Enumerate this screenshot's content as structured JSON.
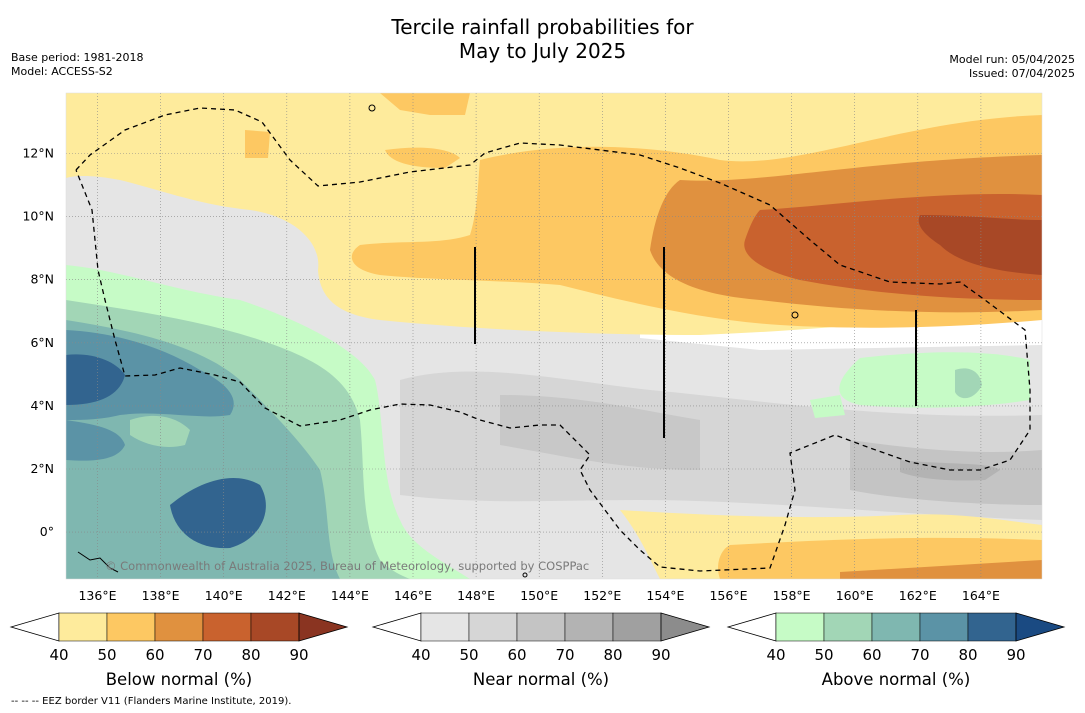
{
  "title_line1": "Tercile rainfall probabilities for",
  "title_line2": "May to July 2025",
  "meta_left": {
    "base_period": "Base period: 1981-2018",
    "model": "Model: ACCESS-S2"
  },
  "meta_right": {
    "model_run": "Model run: 05/04/2025",
    "issued": "Issued: 07/04/2025"
  },
  "copyright": "© Commonwealth of Australia 2025, Bureau of Meteorology, supported by COSPPac",
  "footnote": "--  --  -- EEZ border V11 (Flanders Marine Institute, 2019).",
  "axes": {
    "x_ticks": [
      "136°E",
      "138°E",
      "140°E",
      "142°E",
      "144°E",
      "146°E",
      "148°E",
      "150°E",
      "152°E",
      "154°E",
      "156°E",
      "158°E",
      "160°E",
      "162°E",
      "164°E"
    ],
    "y_ticks": [
      "12°N",
      "10°N",
      "8°N",
      "6°N",
      "4°N",
      "2°N",
      "0°"
    ]
  },
  "legends": [
    {
      "label": "Below normal (%)",
      "ticks": [
        "40",
        "50",
        "60",
        "70",
        "80",
        "90"
      ],
      "colors": [
        "#ffffff",
        "#feeb9c",
        "#fdc862",
        "#e0913f",
        "#c9622e",
        "#a84826",
        "#8a3421"
      ]
    },
    {
      "label": "Near normal (%)",
      "ticks": [
        "40",
        "50",
        "60",
        "70",
        "80",
        "90"
      ],
      "colors": [
        "#ffffff",
        "#e5e5e5",
        "#d6d6d6",
        "#c4c4c4",
        "#b3b3b3",
        "#a0a0a0",
        "#8c8c8c"
      ]
    },
    {
      "label": "Above normal (%)",
      "ticks": [
        "40",
        "50",
        "60",
        "70",
        "80",
        "90"
      ],
      "colors": [
        "#ffffff",
        "#c6fbc6",
        "#a2d6b6",
        "#7fb7b0",
        "#5b93a6",
        "#32648f",
        "#1a4a82"
      ]
    }
  ]
}
